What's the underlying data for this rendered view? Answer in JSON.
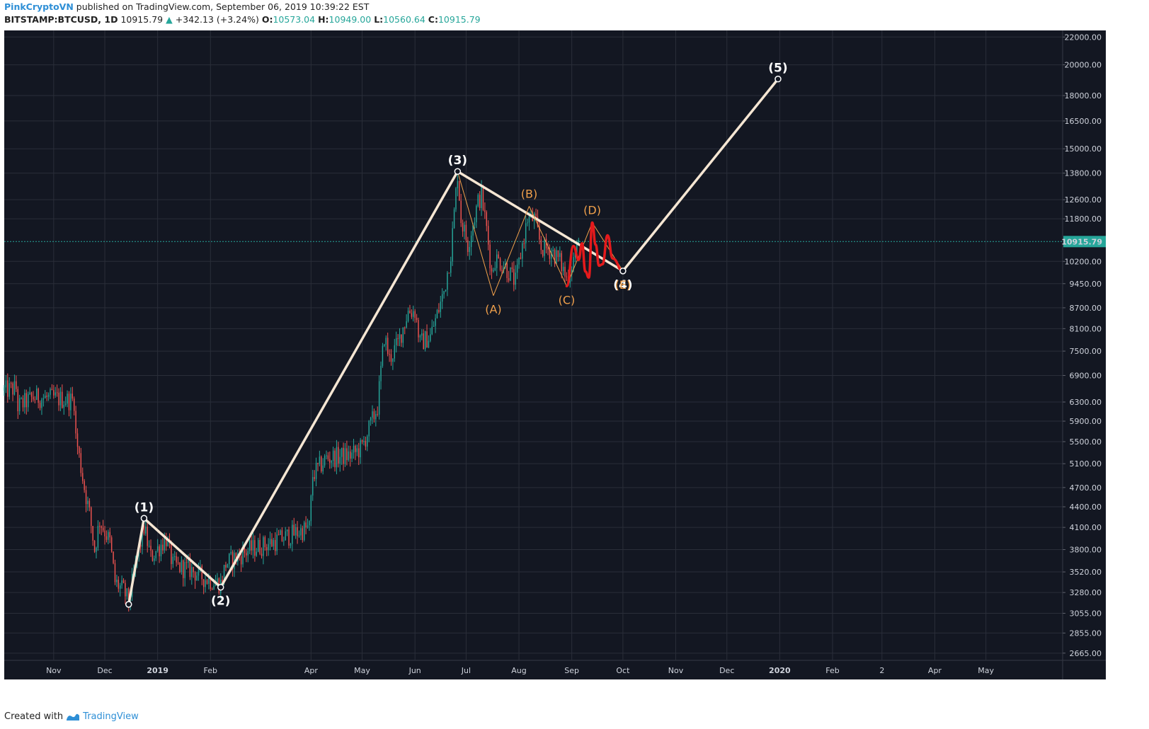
{
  "header": {
    "author": "PinkCryptoVN",
    "published_text": "published on TradingView.com, September 06, 2019 10:39:22 EST",
    "symbol": "BITSTAMP:BTCUSD, 1D",
    "last": "10915.79",
    "change": "+342.13 (+3.24%)",
    "o_label": "O:",
    "o_value": "10573.04",
    "h_label": "H:",
    "h_value": "10949.00",
    "l_label": "L:",
    "l_value": "10560.64",
    "c_label": "C:",
    "c_value": "10915.79"
  },
  "footer": {
    "created_with": "Created with",
    "brand": "TradingView"
  },
  "colors": {
    "background": "#131722",
    "grid": "#2a2e39",
    "up": "#26a69a",
    "down": "#ef5350",
    "wave_line": "#f5e6d3",
    "corrective_label": "#f0a04b",
    "projection": "#e41a1c",
    "price_line": "#26a69a"
  },
  "chart_data": {
    "type": "candlestick",
    "y_scale": "log",
    "ylim": [
      2600,
      22500
    ],
    "x_range": [
      "2018-10-03",
      "2020-06-15"
    ],
    "y_ticks": [
      22000,
      20000,
      18000,
      16500,
      15000,
      13800,
      12600,
      11800,
      10200,
      9450,
      8700,
      8100,
      7500,
      6900,
      6300,
      5900,
      5500,
      5100,
      4700,
      4400,
      4100,
      3800,
      3520,
      3280,
      3055,
      2855,
      2665
    ],
    "y_tick_labels": [
      "22000.00",
      "20000.00",
      "18000.00",
      "16500.00",
      "15000.00",
      "13800.00",
      "12600.00",
      "11800.00",
      "10200.00",
      "9450.00",
      "8700.00",
      "8100.00",
      "7500.00",
      "6900.00",
      "6300.00",
      "5900.00",
      "5500.00",
      "5100.00",
      "4700.00",
      "4400.00",
      "4100.00",
      "3800.00",
      "3520.00",
      "3280.00",
      "3055.00",
      "2855.00",
      "2665.00"
    ],
    "x_ticks": [
      {
        "date": "2018-11-01",
        "label": "Nov"
      },
      {
        "date": "2018-12-01",
        "label": "Dec"
      },
      {
        "date": "2019-01-01",
        "label": "2019"
      },
      {
        "date": "2019-02-01",
        "label": "Feb"
      },
      {
        "date": "2019-04-01",
        "label": "Apr"
      },
      {
        "date": "2019-05-01",
        "label": "May"
      },
      {
        "date": "2019-06-01",
        "label": "Jun"
      },
      {
        "date": "2019-07-01",
        "label": "Jul"
      },
      {
        "date": "2019-08-01",
        "label": "Aug"
      },
      {
        "date": "2019-09-01",
        "label": "Sep"
      },
      {
        "date": "2019-10-01",
        "label": "Oct"
      },
      {
        "date": "2019-11-01",
        "label": "Nov"
      },
      {
        "date": "2019-12-01",
        "label": "Dec"
      },
      {
        "date": "2020-01-01",
        "label": "2020"
      },
      {
        "date": "2020-02-01",
        "label": "Feb"
      },
      {
        "date": "2020-03-01",
        "label": "2"
      },
      {
        "date": "2020-04-01",
        "label": "Apr"
      },
      {
        "date": "2020-05-01",
        "label": "May"
      }
    ],
    "last_price": 10915.79,
    "last_price_label": "10915.79",
    "price_path": [
      [
        "2018-10-03",
        6550
      ],
      [
        "2018-10-10",
        6600
      ],
      [
        "2018-10-11",
        6200
      ],
      [
        "2018-10-20",
        6400
      ],
      [
        "2018-11-01",
        6380
      ],
      [
        "2018-11-13",
        6330
      ],
      [
        "2018-11-14",
        5600
      ],
      [
        "2018-11-19",
        4700
      ],
      [
        "2018-11-22",
        4300
      ],
      [
        "2018-11-25",
        3800
      ],
      [
        "2018-11-28",
        4200
      ],
      [
        "2018-12-04",
        3900
      ],
      [
        "2018-12-07",
        3400
      ],
      [
        "2018-12-12",
        3300
      ],
      [
        "2018-12-15",
        3180
      ],
      [
        "2018-12-20",
        3700
      ],
      [
        "2018-12-24",
        4100
      ],
      [
        "2018-12-28",
        3700
      ],
      [
        "2019-01-06",
        3950
      ],
      [
        "2019-01-10",
        3600
      ],
      [
        "2019-01-20",
        3550
      ],
      [
        "2019-01-28",
        3450
      ],
      [
        "2019-02-07",
        3380
      ],
      [
        "2019-02-10",
        3620
      ],
      [
        "2019-02-24",
        3800
      ],
      [
        "2019-03-10",
        3900
      ],
      [
        "2019-03-31",
        4100
      ],
      [
        "2019-04-02",
        4900
      ],
      [
        "2019-04-10",
        5200
      ],
      [
        "2019-04-25",
        5250
      ],
      [
        "2019-05-01",
        5400
      ],
      [
        "2019-05-10",
        6200
      ],
      [
        "2019-05-14",
        7900
      ],
      [
        "2019-05-17",
        7300
      ],
      [
        "2019-05-22",
        7700
      ],
      [
        "2019-05-28",
        8600
      ],
      [
        "2019-06-01",
        8600
      ],
      [
        "2019-06-04",
        7700
      ],
      [
        "2019-06-10",
        7900
      ],
      [
        "2019-06-14",
        8500
      ],
      [
        "2019-06-18",
        9200
      ],
      [
        "2019-06-22",
        10500
      ],
      [
        "2019-06-26",
        13800
      ],
      [
        "2019-06-28",
        11800
      ],
      [
        "2019-07-02",
        10800
      ],
      [
        "2019-07-08",
        12500
      ],
      [
        "2019-07-10",
        12800
      ],
      [
        "2019-07-13",
        11400
      ],
      [
        "2019-07-16",
        9800
      ],
      [
        "2019-07-18",
        10300
      ],
      [
        "2019-07-23",
        10100
      ],
      [
        "2019-07-30",
        9500
      ],
      [
        "2019-08-03",
        10800
      ],
      [
        "2019-08-06",
        11800
      ],
      [
        "2019-08-10",
        11800
      ],
      [
        "2019-08-14",
        10700
      ],
      [
        "2019-08-20",
        10600
      ],
      [
        "2019-08-25",
        10200
      ],
      [
        "2019-08-29",
        9600
      ],
      [
        "2019-09-03",
        10500
      ],
      [
        "2019-09-06",
        10915
      ]
    ],
    "wave_points": [
      {
        "label": "(1)",
        "date": "2018-12-24",
        "price": 4230
      },
      {
        "label": "(2)",
        "date": "2019-02-07",
        "price": 3340
      },
      {
        "label": "(3)",
        "date": "2019-06-26",
        "price": 13880
      },
      {
        "label": "(4)",
        "date": "2019-10-01",
        "price": 9870
      },
      {
        "label": "(5)",
        "date": "2019-12-31",
        "price": 19050
      }
    ],
    "wave_start": {
      "date": "2018-12-15",
      "price": 3150
    },
    "corrective_points": [
      {
        "label": "(A)",
        "date": "2019-07-17",
        "price": 9070
      },
      {
        "label": "(B)",
        "date": "2019-08-07",
        "price": 12320
      },
      {
        "label": "(C)",
        "date": "2019-08-29",
        "price": 9370
      },
      {
        "label": "(D)",
        "date": "2019-09-13",
        "price": 11650
      },
      {
        "label": "(E)",
        "date": "2019-10-01",
        "price": 9870
      }
    ],
    "projection_path": [
      [
        "2019-08-29",
        9370
      ],
      [
        "2019-09-02",
        10750
      ],
      [
        "2019-09-05",
        10250
      ],
      [
        "2019-09-07",
        10850
      ],
      [
        "2019-09-09",
        9850
      ],
      [
        "2019-09-11",
        9650
      ],
      [
        "2019-09-13",
        11650
      ],
      [
        "2019-09-15",
        10800
      ],
      [
        "2019-09-17",
        10050
      ],
      [
        "2019-09-19",
        10100
      ],
      [
        "2019-09-22",
        11150
      ],
      [
        "2019-09-25",
        10300
      ],
      [
        "2019-10-01",
        9870
      ]
    ]
  }
}
